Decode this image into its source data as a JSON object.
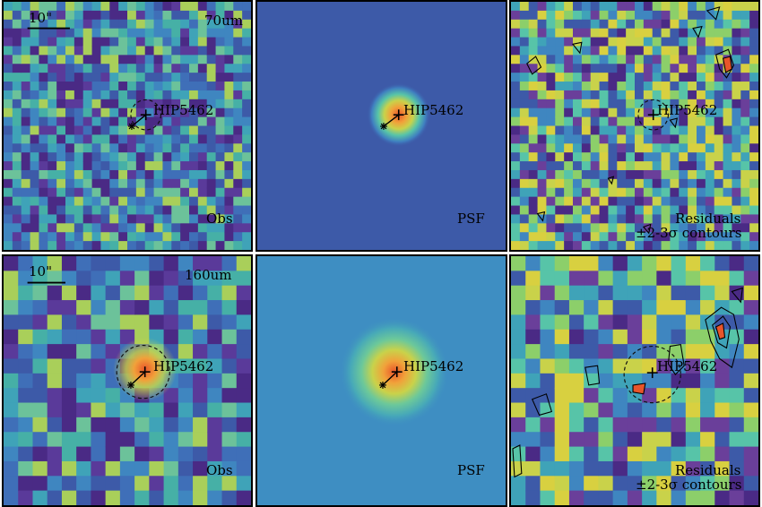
{
  "panels": [
    {
      "id": "top-obs",
      "scale_bar": "10\"",
      "band": "70um",
      "source": "HIP5462",
      "label": "Obs"
    },
    {
      "id": "top-psf",
      "source": "HIP5462",
      "label": "PSF"
    },
    {
      "id": "top-res",
      "source": "HIP5462",
      "label": "Residuals",
      "label2": "±2-3σ contours"
    },
    {
      "id": "bot-obs",
      "scale_bar": "10\"",
      "band": "160um",
      "source": "HIP5462",
      "label": "Obs"
    },
    {
      "id": "bot-psf",
      "source": "HIP5462",
      "label": "PSF"
    },
    {
      "id": "bot-res",
      "source": "HIP5462",
      "label": "Residuals",
      "label2": "±2-3σ contours"
    }
  ],
  "colors": {
    "background_low": "#3d5aa8",
    "background_mid": "#3fa3b8",
    "background_high": "#c9d24a",
    "peak": "#e8552b",
    "noise_dark": "#4a2a85",
    "frame": "#000000"
  }
}
